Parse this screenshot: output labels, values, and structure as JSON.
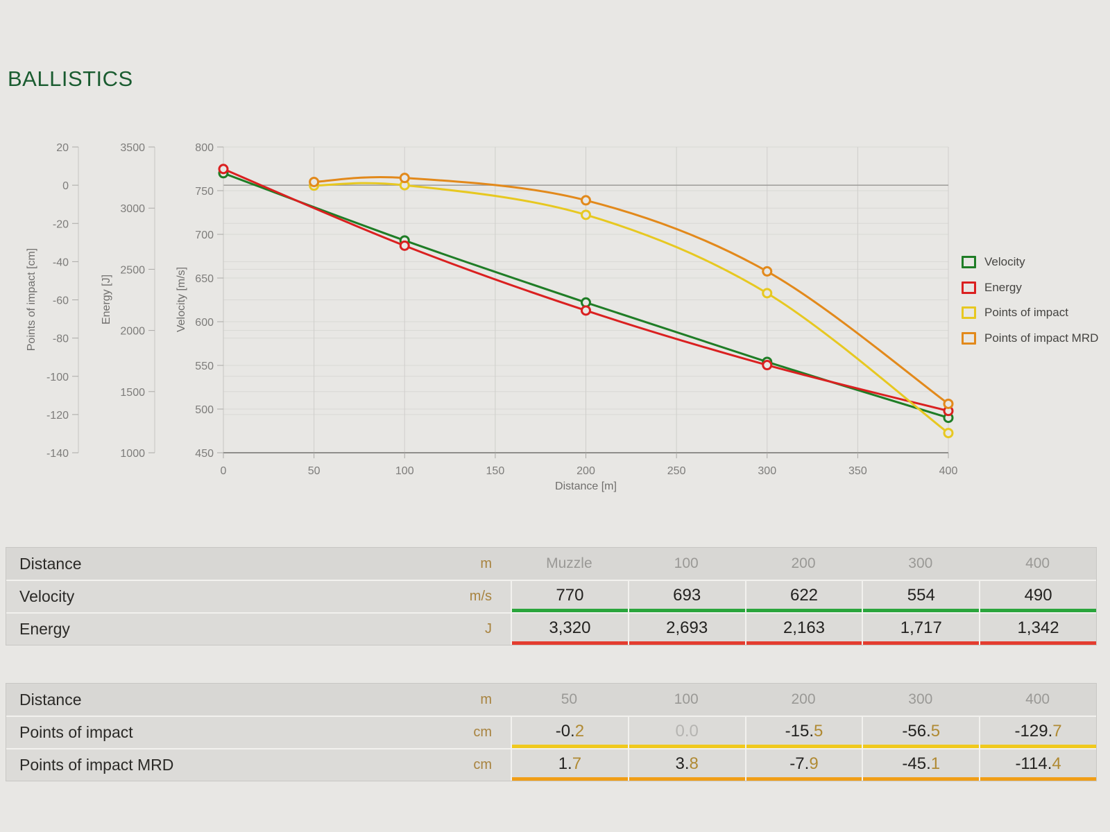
{
  "page": {
    "title": "BALLISTICS"
  },
  "chart_data": {
    "type": "line",
    "xlabel": "Distance [m]",
    "x_range": [
      0,
      400
    ],
    "x_ticks": [
      0,
      50,
      100,
      150,
      200,
      250,
      300,
      350,
      400
    ],
    "grid": true,
    "legend_position": "right",
    "axes": {
      "poi": {
        "label": "Points of impact [cm]",
        "range": [
          20,
          -140
        ],
        "ticks": [
          20,
          0,
          -20,
          -40,
          -60,
          -80,
          -100,
          -120,
          -140
        ]
      },
      "energy": {
        "label": "Energy [J]",
        "range": [
          3500,
          1000
        ],
        "ticks": [
          3500,
          3000,
          2500,
          2000,
          1500,
          1000
        ]
      },
      "velocity": {
        "label": "Velocity [m/s]",
        "range": [
          800,
          450
        ],
        "ticks": [
          800,
          750,
          700,
          650,
          600,
          550,
          500,
          450
        ]
      }
    },
    "zero_line": {
      "axis": "poi",
      "value": 0
    },
    "series": [
      {
        "name": "Velocity",
        "axis": "velocity",
        "color": "#1f7d26",
        "x": [
          0,
          100,
          200,
          300,
          400
        ],
        "y": [
          770,
          693,
          622,
          554,
          490
        ]
      },
      {
        "name": "Energy",
        "axis": "energy",
        "color": "#da2020",
        "x": [
          0,
          100,
          200,
          300,
          400
        ],
        "y": [
          3320,
          2693,
          2163,
          1717,
          1342
        ]
      },
      {
        "name": "Points of impact",
        "axis": "poi",
        "color": "#e7c821",
        "x": [
          50,
          100,
          200,
          300,
          400
        ],
        "y": [
          -0.2,
          0.0,
          -15.5,
          -56.5,
          -129.7
        ]
      },
      {
        "name": "Points of impact MRD",
        "axis": "poi",
        "color": "#e2891b",
        "x": [
          50,
          100,
          200,
          300,
          400
        ],
        "y": [
          1.7,
          3.8,
          -7.9,
          -45.1,
          -114.4
        ]
      }
    ],
    "legend": [
      {
        "label": "Velocity",
        "color": "#1f7d26"
      },
      {
        "label": "Energy",
        "color": "#da2020"
      },
      {
        "label": "Points of impact",
        "color": "#e7c821"
      },
      {
        "label": "Points of impact MRD",
        "color": "#e2891b"
      }
    ]
  },
  "tables": [
    {
      "name": "velocity-energy-table",
      "header": {
        "label": "Distance",
        "unit": "m",
        "columns": [
          "Muzzle",
          "100",
          "200",
          "300",
          "400"
        ]
      },
      "rows": [
        {
          "label": "Velocity",
          "unit": "m/s",
          "underline": "#2aa53c",
          "values": [
            "770",
            "693",
            "622",
            "554",
            "490"
          ]
        },
        {
          "label": "Energy",
          "unit": "J",
          "underline": "#e43d2f",
          "values": [
            "3,320",
            "2,693",
            "2,163",
            "1,717",
            "1,342"
          ]
        }
      ]
    },
    {
      "name": "points-of-impact-table",
      "header": {
        "label": "Distance",
        "unit": "m",
        "columns": [
          "50",
          "100",
          "200",
          "300",
          "400"
        ]
      },
      "rows": [
        {
          "label": "Points of impact",
          "unit": "cm",
          "underline": "#f0c91d",
          "values": [
            "-0.2",
            "0.0",
            "-15.5",
            "-56.5",
            "-129.7"
          ],
          "muted": [
            false,
            true,
            false,
            false,
            false
          ]
        },
        {
          "label": "Points of impact MRD",
          "unit": "cm",
          "underline": "#f09e17",
          "values": [
            "1.7",
            "3.8",
            "-7.9",
            "-45.1",
            "-114.4"
          ]
        }
      ]
    }
  ]
}
